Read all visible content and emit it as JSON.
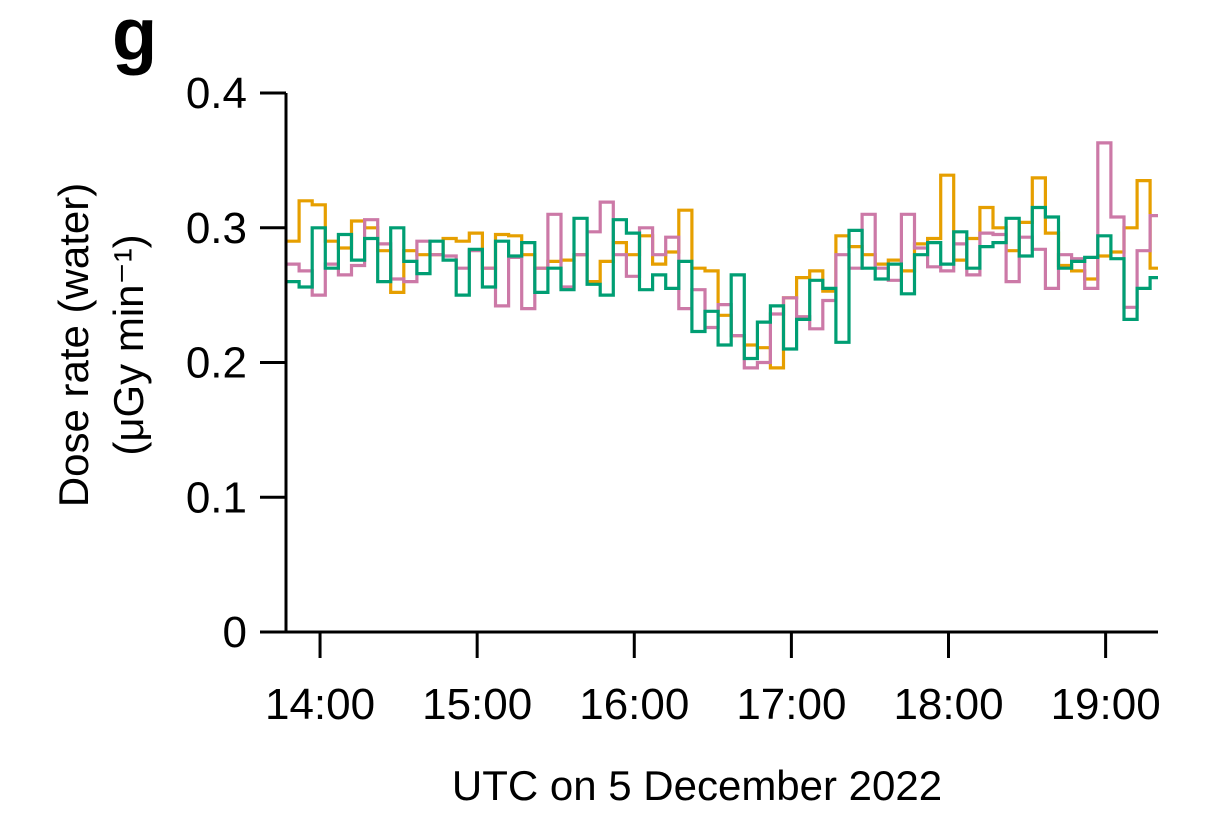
{
  "panel_label": "g",
  "colors": {
    "orange": "#E69F00",
    "pink": "#CC79A7",
    "green": "#009E73",
    "axis": "#000000"
  },
  "chart_data": {
    "type": "line",
    "step": true,
    "title": "",
    "xlabel": "UTC on 5 December 2022",
    "ylabel": [
      "Dose rate (water)",
      "(μGy min⁻¹)"
    ],
    "xlim": [
      "13:47",
      "19:20"
    ],
    "ylim": [
      0,
      0.4
    ],
    "bin_minutes": 5,
    "x_ticks": [
      "14:00",
      "15:00",
      "16:00",
      "17:00",
      "18:00",
      "19:00"
    ],
    "y_ticks": [
      "0",
      "0.1",
      "0.2",
      "0.3",
      "0.4"
    ],
    "grid": false,
    "legend": "none",
    "series": [
      {
        "color": "#E69F00",
        "values": [
          0.29,
          0.32,
          0.317,
          0.29,
          0.285,
          0.305,
          0.3,
          0.283,
          0.252,
          0.283,
          0.28,
          0.28,
          0.292,
          0.29,
          0.296,
          0.27,
          0.295,
          0.294,
          0.28,
          0.27,
          0.275,
          0.276,
          0.28,
          0.26,
          0.275,
          0.289,
          0.28,
          0.294,
          0.273,
          0.282,
          0.313,
          0.27,
          0.268,
          0.235,
          0.22,
          0.213,
          0.211,
          0.196,
          0.248,
          0.263,
          0.268,
          0.253,
          0.294,
          0.286,
          0.28,
          0.273,
          0.276,
          0.268,
          0.288,
          0.292,
          0.339,
          0.276,
          0.292,
          0.315,
          0.3,
          0.283,
          0.304,
          0.337,
          0.296,
          0.272,
          0.268,
          0.262,
          0.279,
          0.282,
          0.3,
          0.335,
          0.27,
          0.28,
          0.285
        ]
      },
      {
        "color": "#CC79A7",
        "values": [
          0.273,
          0.268,
          0.25,
          0.273,
          0.265,
          0.272,
          0.306,
          0.288,
          0.262,
          0.26,
          0.29,
          0.28,
          0.279,
          0.27,
          0.283,
          0.27,
          0.242,
          0.278,
          0.24,
          0.27,
          0.31,
          0.256,
          0.28,
          0.297,
          0.319,
          0.28,
          0.264,
          0.3,
          0.28,
          0.293,
          0.24,
          0.254,
          0.226,
          0.243,
          0.22,
          0.196,
          0.2,
          0.236,
          0.248,
          0.234,
          0.225,
          0.246,
          0.28,
          0.27,
          0.31,
          0.27,
          0.261,
          0.31,
          0.285,
          0.271,
          0.268,
          0.288,
          0.265,
          0.296,
          0.295,
          0.26,
          0.293,
          0.284,
          0.255,
          0.28,
          0.277,
          0.255,
          0.363,
          0.308,
          0.241,
          0.283,
          0.309,
          0.256,
          0.306
        ]
      },
      {
        "color": "#009E73",
        "values": [
          0.26,
          0.256,
          0.3,
          0.27,
          0.295,
          0.276,
          0.292,
          0.26,
          0.3,
          0.275,
          0.266,
          0.29,
          0.276,
          0.25,
          0.284,
          0.256,
          0.29,
          0.279,
          0.289,
          0.252,
          0.27,
          0.254,
          0.307,
          0.258,
          0.25,
          0.306,
          0.296,
          0.254,
          0.265,
          0.255,
          0.275,
          0.223,
          0.238,
          0.213,
          0.265,
          0.203,
          0.23,
          0.242,
          0.21,
          0.232,
          0.261,
          0.255,
          0.215,
          0.298,
          0.27,
          0.262,
          0.273,
          0.251,
          0.28,
          0.289,
          0.273,
          0.297,
          0.27,
          0.286,
          0.289,
          0.307,
          0.279,
          0.315,
          0.308,
          0.27,
          0.275,
          0.278,
          0.294,
          0.277,
          0.232,
          0.255,
          0.263,
          0.262,
          0.282
        ]
      }
    ]
  }
}
